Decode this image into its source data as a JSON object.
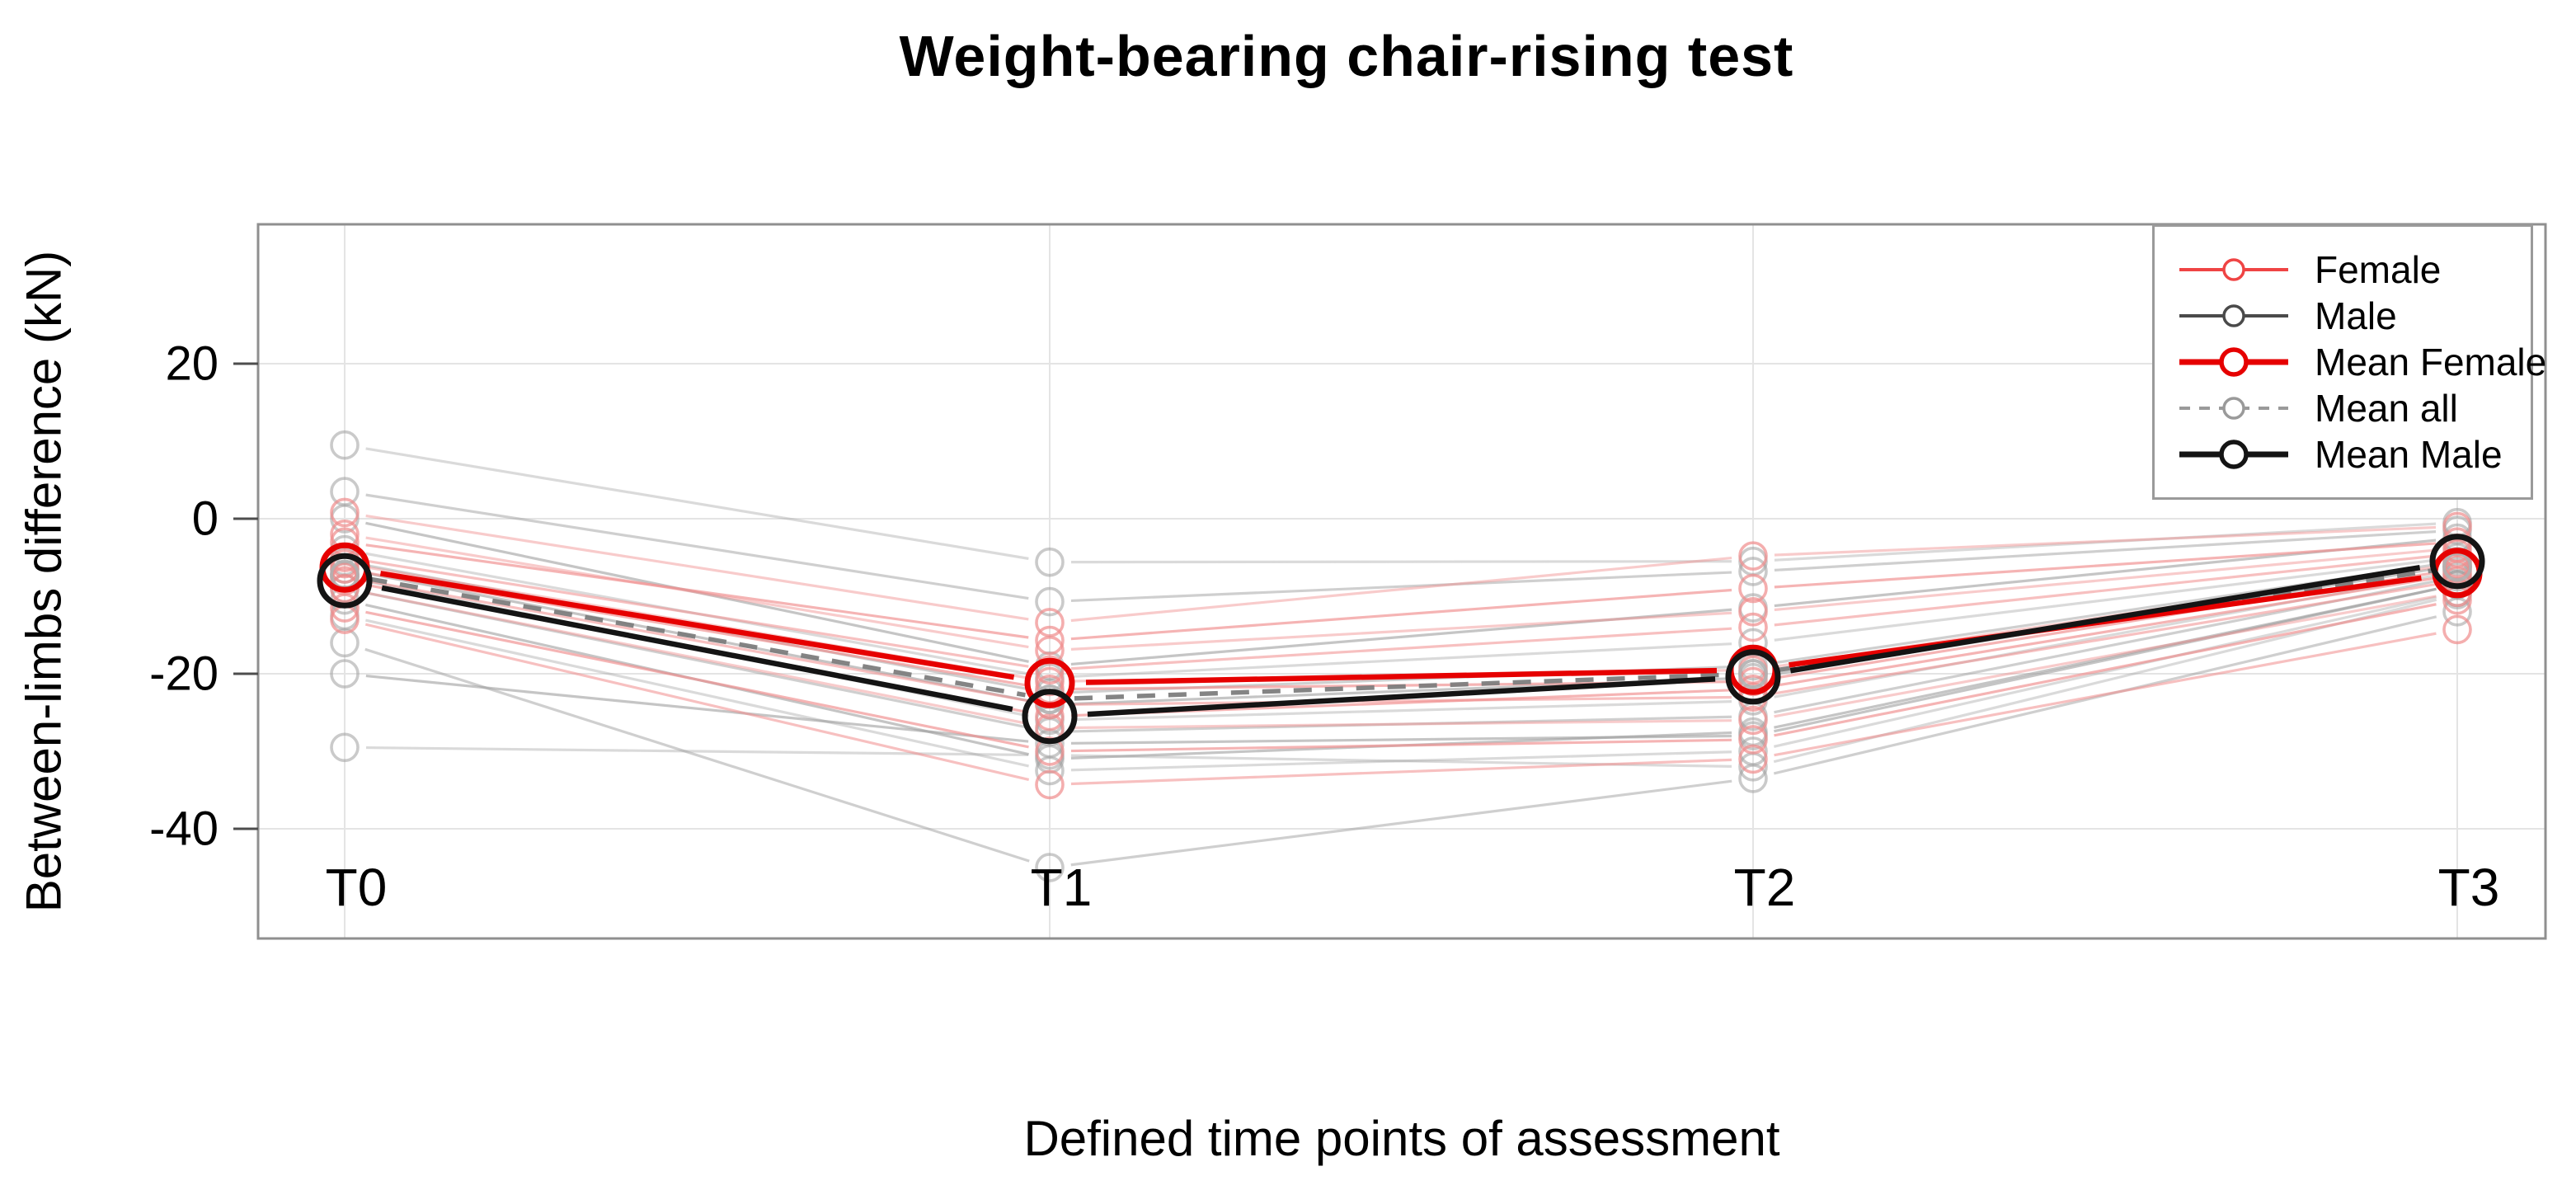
{
  "page": {
    "background": "#ffffff"
  },
  "chart_data": {
    "type": "line",
    "title": "Weight-bearing chair-rising test",
    "xlabel": "Defined time points of assessment",
    "ylabel": "Between-limbs difference (kN)",
    "categories": [
      "T0",
      "T1",
      "T2",
      "T3"
    ],
    "yticks": [
      20,
      0,
      -20,
      -40
    ],
    "ytick_labels": [
      "20",
      "0",
      "-20",
      "-40"
    ],
    "ylim": [
      -54,
      38
    ],
    "grid": "both",
    "point_style": "open-circle",
    "legend": {
      "position": "top-right",
      "items": [
        {
          "label": "Female",
          "color": "#ef4444",
          "style": "solid",
          "weight": "thin"
        },
        {
          "label": "Male",
          "color": "#4a4a4a",
          "style": "solid",
          "weight": "thin"
        },
        {
          "label": "Mean Female",
          "color": "#e60000",
          "style": "solid",
          "weight": "thick"
        },
        {
          "label": "Mean all",
          "color": "#9a9a9a",
          "style": "dashed",
          "weight": "thin"
        },
        {
          "label": "Mean Male",
          "color": "#141414",
          "style": "solid",
          "weight": "thick"
        }
      ]
    },
    "series": [
      {
        "name": "Mean Female",
        "role": "mean",
        "group": "female",
        "values": [
          -6.3,
          -21.2,
          -19.5,
          -7.0
        ]
      },
      {
        "name": "Mean all",
        "role": "mean",
        "group": "all",
        "values": [
          -7.2,
          -23.3,
          -20.0,
          -6.2
        ]
      },
      {
        "name": "Mean Male",
        "role": "mean",
        "group": "male",
        "values": [
          -8.0,
          -25.5,
          -20.4,
          -5.5
        ]
      }
    ],
    "female_subjects": [
      [
        0.8,
        -13.4,
        -4.8,
        -1.0
      ],
      [
        -3.0,
        -15.7,
        -9.0,
        -3.0
      ],
      [
        -5.0,
        -19.5,
        -14.0,
        -4.5
      ],
      [
        -5.8,
        -21.0,
        -19.5,
        -5.8
      ],
      [
        -6.5,
        -22.0,
        -21.0,
        -6.5
      ],
      [
        -7.5,
        -24.0,
        -23.0,
        -8.0
      ],
      [
        -9.0,
        -27.0,
        -26.0,
        -9.5
      ],
      [
        -11.5,
        -30.0,
        -28.5,
        -10.5
      ],
      [
        -13.0,
        -34.3,
        -31.0,
        -14.3
      ],
      [
        -2.0,
        -17.0,
        -12.0,
        -3.8
      ],
      [
        -8.0,
        -25.5,
        -22.0,
        -7.2
      ]
    ],
    "male_subjects": [
      [
        9.5,
        -5.6,
        -5.5,
        -0.5
      ],
      [
        3.5,
        -10.7,
        -6.8,
        -1.5
      ],
      [
        0.0,
        -19.0,
        -11.5,
        -2.5
      ],
      [
        -4.0,
        -20.5,
        -16.0,
        -5.0
      ],
      [
        -5.5,
        -22.5,
        -19.0,
        -5.5
      ],
      [
        -6.5,
        -24.0,
        -20.5,
        -6.0
      ],
      [
        -7.5,
        -26.0,
        -23.5,
        -6.8
      ],
      [
        -9.0,
        -27.5,
        -25.5,
        -7.5
      ],
      [
        -10.5,
        -31.0,
        -27.5,
        -8.5
      ],
      [
        -12.5,
        -32.5,
        -30.0,
        -9.5
      ],
      [
        -16.0,
        -45.0,
        -33.5,
        -12.0
      ],
      [
        -20.0,
        -29.0,
        -28.0,
        -8.5
      ],
      [
        -29.5,
        -30.5,
        -32.0,
        -9.8
      ]
    ],
    "colors": {
      "female_individual": "#f08c8c",
      "male_individual": "#9e9e9e",
      "mean_female": "#e60000",
      "mean_male": "#141414",
      "mean_all": "#7d7d7d",
      "mean_all_marker": "#b0b0b0",
      "grid": "#e4e4e4",
      "box_border": "#8f8f8f",
      "tick": "#4d4d4d",
      "text": "#000000"
    }
  }
}
